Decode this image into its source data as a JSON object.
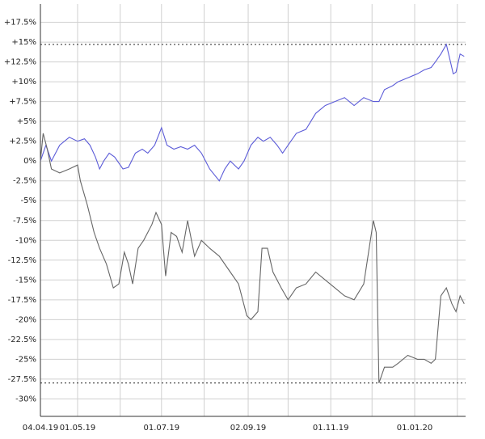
{
  "chart_data": {
    "type": "line",
    "xlim": [
      "2019-04-04",
      "2020-02-07"
    ],
    "xticks": [
      {
        "value": "2019-04-04",
        "label": "04.04.19"
      },
      {
        "value": "2019-05-01",
        "label": "01.05.19"
      },
      {
        "value": "2019-07-01",
        "label": "01.07.19"
      },
      {
        "value": "2019-09-02",
        "label": "02.09.19"
      },
      {
        "value": "2019-11-01",
        "label": "01.11.19"
      },
      {
        "value": "2020-01-01",
        "label": "01.01.20"
      }
    ],
    "xminor": [
      "2019-06-01",
      "2019-08-01",
      "2019-10-01",
      "2019-12-01",
      "2020-02-01"
    ],
    "ylim": [
      -32.2,
      19.8
    ],
    "yticks": [
      {
        "value": 17.5,
        "label": "+17.5%"
      },
      {
        "value": 15,
        "label": "+15%"
      },
      {
        "value": 12.5,
        "label": "+12.5%"
      },
      {
        "value": 10,
        "label": "+10%"
      },
      {
        "value": 7.5,
        "label": "+7.5%"
      },
      {
        "value": 5,
        "label": "+5%"
      },
      {
        "value": 2.5,
        "label": "+2.5%"
      },
      {
        "value": 0,
        "label": "0%"
      },
      {
        "value": -2.5,
        "label": "-2.5%"
      },
      {
        "value": -5,
        "label": "-5%"
      },
      {
        "value": -7.5,
        "label": "-7.5%"
      },
      {
        "value": -10,
        "label": "-10%"
      },
      {
        "value": -12.5,
        "label": "-12.5%"
      },
      {
        "value": -15,
        "label": "-15%"
      },
      {
        "value": -17.5,
        "label": "-17.5%"
      },
      {
        "value": -20,
        "label": "-20%"
      },
      {
        "value": -22.5,
        "label": "-22.5%"
      },
      {
        "value": -25,
        "label": "-25%"
      },
      {
        "value": -27.5,
        "label": "-27.5%"
      },
      {
        "value": -30,
        "label": "-30%"
      }
    ],
    "grid": true,
    "reference_lines": [
      14.7,
      -28
    ],
    "series": [
      {
        "color": "#5c5cd8",
        "x": [
          "2019-04-04",
          "2019-04-08",
          "2019-04-12",
          "2019-04-18",
          "2019-04-25",
          "2019-05-01",
          "2019-05-06",
          "2019-05-10",
          "2019-05-14",
          "2019-05-17",
          "2019-05-20",
          "2019-05-24",
          "2019-05-28",
          "2019-06-03",
          "2019-06-07",
          "2019-06-12",
          "2019-06-17",
          "2019-06-21",
          "2019-06-26",
          "2019-07-01",
          "2019-07-05",
          "2019-07-10",
          "2019-07-15",
          "2019-07-20",
          "2019-07-25",
          "2019-07-30",
          "2019-08-05",
          "2019-08-12",
          "2019-08-16",
          "2019-08-20",
          "2019-08-26",
          "2019-08-30",
          "2019-09-04",
          "2019-09-09",
          "2019-09-13",
          "2019-09-18",
          "2019-09-23",
          "2019-09-27",
          "2019-10-01",
          "2019-10-07",
          "2019-10-14",
          "2019-10-21",
          "2019-10-28",
          "2019-11-04",
          "2019-11-11",
          "2019-11-18",
          "2019-11-25",
          "2019-12-02",
          "2019-12-06",
          "2019-12-10",
          "2019-12-16",
          "2019-12-20",
          "2019-12-27",
          "2020-01-03",
          "2020-01-08",
          "2020-01-13",
          "2020-01-16",
          "2020-01-20",
          "2020-01-24",
          "2020-01-27",
          "2020-01-29",
          "2020-01-31",
          "2020-02-03",
          "2020-02-06"
        ],
        "values": [
          0,
          2,
          0,
          2,
          3,
          2.5,
          2.8,
          2,
          0.5,
          -1,
          0,
          1,
          0.5,
          -1,
          -0.8,
          1,
          1.5,
          1,
          2,
          4.2,
          2,
          1.5,
          1.8,
          1.5,
          2,
          1,
          -1,
          -2.5,
          -1,
          0,
          -1,
          0,
          2,
          3,
          2.5,
          3,
          2,
          1,
          2,
          3.5,
          4,
          6,
          7,
          7.5,
          8,
          7,
          8,
          7.5,
          7.5,
          9,
          9.5,
          10,
          10.5,
          11,
          11.5,
          11.8,
          12.5,
          13.5,
          14.7,
          12.5,
          11,
          11.2,
          13.5,
          13.2
        ]
      },
      {
        "color": "#666666",
        "x": [
          "2019-04-04",
          "2019-04-06",
          "2019-04-09",
          "2019-04-12",
          "2019-04-18",
          "2019-04-25",
          "2019-05-01",
          "2019-05-03",
          "2019-05-08",
          "2019-05-13",
          "2019-05-17",
          "2019-05-22",
          "2019-05-27",
          "2019-05-31",
          "2019-06-04",
          "2019-06-07",
          "2019-06-10",
          "2019-06-14",
          "2019-06-18",
          "2019-06-24",
          "2019-06-27",
          "2019-07-01",
          "2019-07-04",
          "2019-07-08",
          "2019-07-12",
          "2019-07-16",
          "2019-07-20",
          "2019-07-25",
          "2019-07-30",
          "2019-08-05",
          "2019-08-12",
          "2019-08-20",
          "2019-08-26",
          "2019-09-01",
          "2019-09-04",
          "2019-09-09",
          "2019-09-12",
          "2019-09-16",
          "2019-09-20",
          "2019-09-26",
          "2019-10-01",
          "2019-10-07",
          "2019-10-14",
          "2019-10-21",
          "2019-10-28",
          "2019-11-04",
          "2019-11-11",
          "2019-11-18",
          "2019-11-25",
          "2019-12-02",
          "2019-12-04",
          "2019-12-06",
          "2019-12-10",
          "2019-12-16",
          "2019-12-20",
          "2019-12-27",
          "2020-01-03",
          "2020-01-08",
          "2020-01-13",
          "2020-01-16",
          "2020-01-20",
          "2020-01-24",
          "2020-01-28",
          "2020-01-31",
          "2020-02-03",
          "2020-02-06"
        ],
        "values": [
          0,
          3.5,
          1.5,
          -1,
          -1.5,
          -1,
          -0.5,
          -2.5,
          -5.5,
          -9,
          -11,
          -13,
          -16,
          -15.5,
          -11.5,
          -13,
          -15.5,
          -11,
          -10,
          -8,
          -6.5,
          -8,
          -14.5,
          -9,
          -9.5,
          -11.5,
          -7.5,
          -12,
          -10,
          -11,
          -12,
          -14,
          -15.5,
          -19.5,
          -20,
          -19,
          -11,
          -11,
          -14,
          -16,
          -17.5,
          -16,
          -15.5,
          -14,
          -15,
          -16,
          -17,
          -17.5,
          -15.5,
          -7.5,
          -9,
          -28,
          -26,
          -26,
          -25.5,
          -24.5,
          -25,
          -25,
          -25.5,
          -25,
          -17,
          -16,
          -18,
          -19,
          -17,
          -18
        ]
      }
    ]
  }
}
